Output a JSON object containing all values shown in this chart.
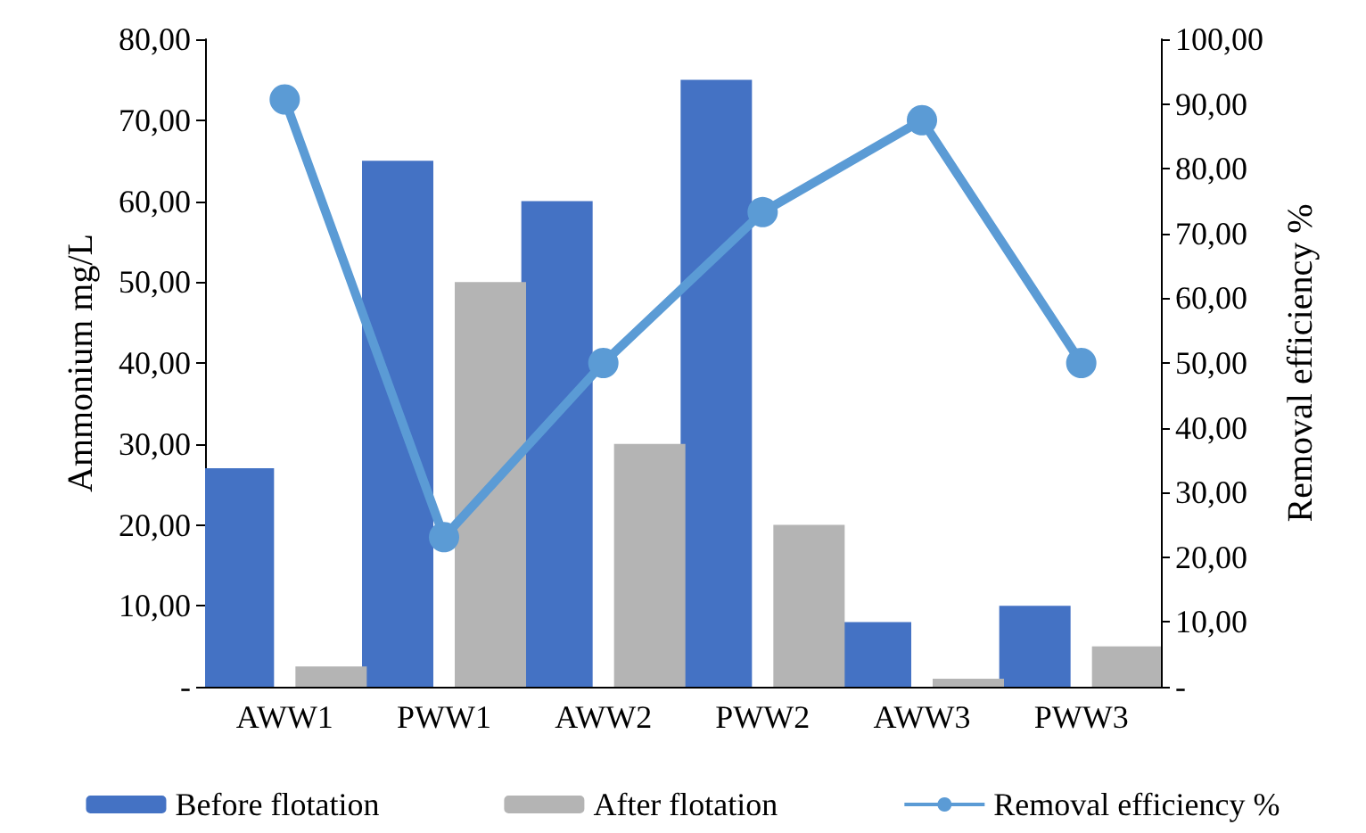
{
  "chart_data": {
    "type": "bar",
    "categories": [
      "AWW1",
      "PWW1",
      "AWW2",
      "PWW2",
      "AWW3",
      "PWW3"
    ],
    "ylabel": "Ammonium mg/L",
    "y2label": "Removal efficiency %",
    "series": [
      {
        "name": "Before flotation",
        "color": "#4472c4",
        "values": [
          27,
          65,
          60,
          75,
          8,
          10
        ]
      },
      {
        "name": "After flotation",
        "color": "#b4b4b4",
        "values": [
          2.5,
          50,
          30,
          20,
          1,
          5
        ]
      },
      {
        "name": "Removal efficiency %",
        "type": "line",
        "axis": "y2",
        "color": "#5b9bd5",
        "values": [
          90.7,
          23.1,
          50,
          73.3,
          87.5,
          50
        ]
      }
    ],
    "ylim": [
      0,
      80
    ],
    "yticks": [
      {
        "value": 0,
        "label": "-"
      },
      {
        "value": 10,
        "label": "10,00"
      },
      {
        "value": 20,
        "label": "20,00"
      },
      {
        "value": 30,
        "label": "30,00"
      },
      {
        "value": 40,
        "label": "40,00"
      },
      {
        "value": 50,
        "label": "50,00"
      },
      {
        "value": 60,
        "label": "60,00"
      },
      {
        "value": 70,
        "label": "70,00"
      },
      {
        "value": 80,
        "label": "80,00"
      }
    ],
    "y2lim": [
      0,
      100
    ],
    "y2ticks": [
      {
        "value": 0,
        "label": "-"
      },
      {
        "value": 10,
        "label": "10,00"
      },
      {
        "value": 20,
        "label": "20,00"
      },
      {
        "value": 30,
        "label": "30,00"
      },
      {
        "value": 40,
        "label": "40,00"
      },
      {
        "value": 50,
        "label": "50,00"
      },
      {
        "value": 60,
        "label": "60,00"
      },
      {
        "value": 70,
        "label": "70,00"
      },
      {
        "value": 80,
        "label": "80,00"
      },
      {
        "value": 90,
        "label": "90,00"
      },
      {
        "value": 100,
        "label": "100,00"
      }
    ],
    "grid": false,
    "legend": "bottom",
    "marker": "circle",
    "line_style": "solid"
  }
}
